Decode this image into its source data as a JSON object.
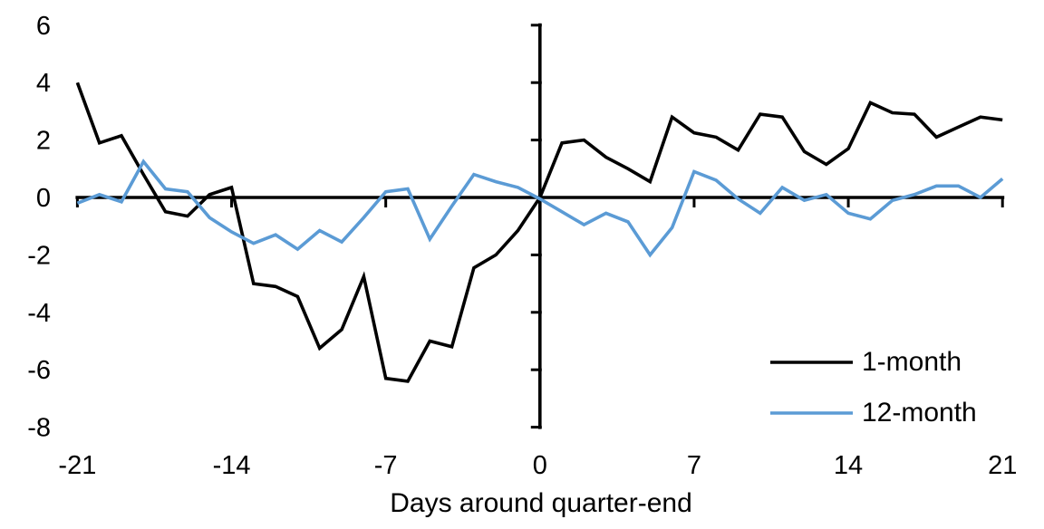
{
  "chart_data": {
    "type": "line",
    "title": "",
    "xlabel": "Days around quarter-end",
    "ylabel": "",
    "grid": false,
    "legend_position": "inside-bottom-right",
    "xlim": [
      -21,
      21
    ],
    "ylim": [
      -8,
      6
    ],
    "x": [
      -21,
      -20,
      -19,
      -18,
      -17,
      -16,
      -15,
      -14,
      -13,
      -12,
      -11,
      -10,
      -9,
      -8,
      -7,
      -6,
      -5,
      -4,
      -3,
      -2,
      -1,
      0,
      1,
      2,
      3,
      4,
      5,
      6,
      7,
      8,
      9,
      10,
      11,
      12,
      13,
      14,
      15,
      16,
      17,
      18,
      19,
      20,
      21
    ],
    "series": [
      {
        "name": "1-month",
        "color": "#000000",
        "values": [
          4.0,
          1.9,
          2.15,
          0.8,
          -0.5,
          -0.65,
          0.1,
          0.35,
          -3.0,
          -3.1,
          -3.45,
          -5.25,
          -4.6,
          -2.75,
          -6.3,
          -6.4,
          -5.0,
          -5.2,
          -2.45,
          -2.0,
          -1.15,
          0.0,
          1.9,
          2.0,
          1.4,
          1.0,
          0.55,
          2.8,
          2.25,
          2.1,
          1.65,
          2.9,
          2.8,
          1.6,
          1.15,
          1.7,
          3.3,
          2.95,
          2.9,
          2.1,
          2.45,
          2.8,
          2.7
        ]
      },
      {
        "name": "12-month",
        "color": "#5B9BD5",
        "values": [
          -0.2,
          0.1,
          -0.15,
          1.25,
          0.3,
          0.2,
          -0.7,
          -1.2,
          -1.6,
          -1.3,
          -1.8,
          -1.15,
          -1.55,
          -0.7,
          0.2,
          0.3,
          -1.45,
          -0.3,
          0.8,
          0.55,
          0.35,
          -0.05,
          -0.5,
          -0.95,
          -0.55,
          -0.85,
          -2.0,
          -1.05,
          0.9,
          0.6,
          -0.05,
          -0.55,
          0.35,
          -0.1,
          0.1,
          -0.55,
          -0.75,
          -0.1,
          0.1,
          0.4,
          0.4,
          0.0,
          0.65
        ]
      }
    ],
    "x_tick_values": [
      -21,
      -14,
      -7,
      0,
      7,
      14,
      21
    ],
    "x_tick_labels": [
      "-21",
      "-14",
      "-7",
      "0",
      "7",
      "14",
      "21"
    ],
    "y_tick_values": [
      6,
      4,
      2,
      0,
      -2,
      -4,
      -6,
      -8
    ],
    "y_tick_labels": [
      "6",
      "4",
      "2",
      "0",
      "-2",
      "-4",
      "-6",
      "-8"
    ]
  }
}
